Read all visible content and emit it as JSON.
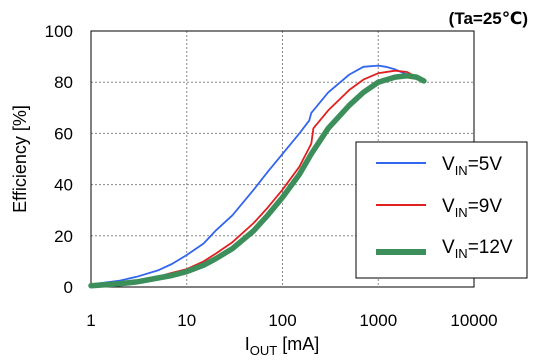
{
  "chart_data": {
    "type": "line",
    "annotation": "(Ta=25℃)",
    "xlabel": {
      "main": "I",
      "sub": "OUT",
      "unit": " [mA]"
    },
    "ylabel": "Efficiency [%]",
    "xscale": "log",
    "xlim": [
      1,
      10000
    ],
    "ylim": [
      0,
      100
    ],
    "xticks": [
      1,
      10,
      100,
      1000,
      10000
    ],
    "xtick_labels": [
      "1",
      "10",
      "100",
      "1000",
      "10000"
    ],
    "yticks": [
      0,
      20,
      40,
      60,
      80,
      100
    ],
    "ytick_labels": [
      "0",
      "20",
      "40",
      "60",
      "80",
      "100"
    ],
    "grid": {
      "horizontal": true,
      "vertical": true,
      "style": "dotted"
    },
    "legend_position": "bottom-right",
    "series": [
      {
        "name": "V_IN=5V",
        "legend": {
          "main": "V",
          "sub": "IN",
          "rest": "=5V"
        },
        "color": "#3366ee",
        "x": [
          1,
          2,
          3,
          5,
          7,
          10,
          15,
          20,
          30,
          50,
          70,
          100,
          150,
          190,
          200,
          300,
          500,
          700,
          1000,
          1200,
          1500,
          2000
        ],
        "y": [
          1,
          2.5,
          4,
          6.5,
          9,
          12.5,
          17,
          22,
          28,
          38,
          45,
          52,
          60,
          65,
          68,
          76,
          83,
          86,
          86.5,
          86,
          85,
          83
        ]
      },
      {
        "name": "V_IN=9V",
        "legend": {
          "main": "V",
          "sub": "IN",
          "rest": "=9V"
        },
        "color": "#e02020",
        "x": [
          1,
          2,
          3,
          5,
          7,
          10,
          15,
          20,
          30,
          50,
          70,
          100,
          150,
          200,
          210,
          300,
          500,
          700,
          1000,
          1500,
          2000,
          2500
        ],
        "y": [
          0.8,
          1.5,
          2.5,
          4,
          5.5,
          7,
          10,
          13,
          17.5,
          25,
          31,
          38,
          47,
          56,
          62,
          69,
          77,
          81,
          83.5,
          84.5,
          84,
          82
        ]
      },
      {
        "name": "V_IN=12V",
        "legend": {
          "main": "V",
          "sub": "IN",
          "rest": "=12V"
        },
        "color": "#3c8e5a",
        "x": [
          1,
          2,
          3,
          5,
          7,
          10,
          15,
          20,
          30,
          50,
          70,
          100,
          150,
          200,
          300,
          500,
          700,
          1000,
          1500,
          2000,
          2500,
          3000
        ],
        "y": [
          0.5,
          1.3,
          2,
          3.5,
          4.5,
          6,
          8.5,
          11,
          15,
          22,
          28,
          35,
          44,
          52,
          62,
          71,
          76,
          80,
          82,
          82.5,
          82,
          80.5
        ]
      }
    ]
  }
}
